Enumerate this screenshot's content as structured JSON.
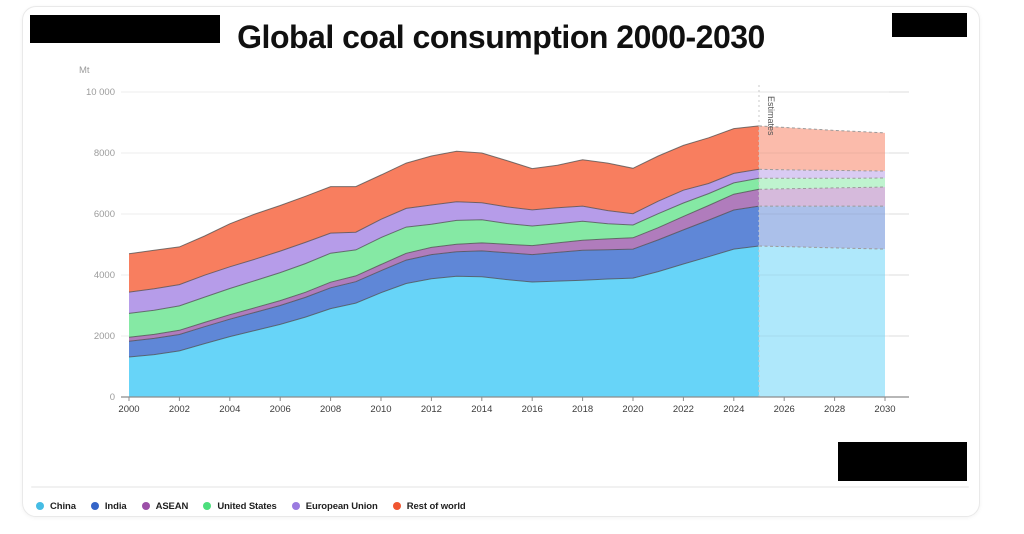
{
  "chart": {
    "title": "Global coal consumption 2000-2030",
    "unit_label": "Mt",
    "estimates_label": "Estimates",
    "chart_data": {
      "type": "area",
      "stacked": true,
      "title": "Global coal consumption 2000-2030",
      "ylabel": "Mt",
      "ylim": [
        0,
        10000
      ],
      "yticks": [
        0,
        2000,
        4000,
        6000,
        8000,
        10000
      ],
      "ytick_labels": [
        "0",
        "2000",
        "4000",
        "6000",
        "8000",
        "10 000"
      ],
      "xticks": [
        2000,
        2002,
        2004,
        2006,
        2008,
        2010,
        2012,
        2014,
        2016,
        2018,
        2020,
        2022,
        2024,
        2026,
        2028,
        2030
      ],
      "x": [
        2000,
        2001,
        2002,
        2003,
        2004,
        2005,
        2006,
        2007,
        2008,
        2009,
        2010,
        2011,
        2012,
        2013,
        2014,
        2015,
        2016,
        2017,
        2018,
        2019,
        2020,
        2021,
        2022,
        2023,
        2024,
        2025,
        2026,
        2027,
        2028,
        2029,
        2030
      ],
      "estimates_from": 2025,
      "grid": true,
      "legend_position": "bottom",
      "series": [
        {
          "name": "China",
          "color": "#67d4f8",
          "dot_color": "#45bce4",
          "values": [
            1310,
            1390,
            1510,
            1750,
            1980,
            2180,
            2380,
            2620,
            2900,
            3080,
            3420,
            3720,
            3880,
            3960,
            3940,
            3850,
            3770,
            3800,
            3830,
            3870,
            3900,
            4110,
            4360,
            4600,
            4850,
            4950,
            4930,
            4910,
            4890,
            4870,
            4850
          ]
        },
        {
          "name": "India",
          "color": "#5f87d7",
          "dot_color": "#3465c8",
          "values": [
            520,
            530,
            540,
            555,
            570,
            595,
            620,
            645,
            680,
            700,
            720,
            770,
            790,
            800,
            850,
            880,
            900,
            940,
            980,
            960,
            950,
            1040,
            1120,
            1200,
            1280,
            1310,
            1330,
            1350,
            1370,
            1390,
            1410
          ]
        },
        {
          "name": "ASEAN",
          "color": "#b07cbc",
          "dot_color": "#9c4fa8",
          "values": [
            130,
            133,
            136,
            142,
            148,
            152,
            160,
            168,
            185,
            192,
            205,
            220,
            235,
            250,
            262,
            278,
            295,
            312,
            330,
            352,
            370,
            400,
            440,
            480,
            520,
            550,
            565,
            580,
            595,
            610,
            625
          ]
        },
        {
          "name": "United States",
          "color": "#85e9a4",
          "dot_color": "#4cde7c",
          "values": [
            780,
            790,
            800,
            830,
            860,
            890,
            920,
            940,
            950,
            850,
            880,
            860,
            760,
            780,
            760,
            680,
            640,
            630,
            620,
            500,
            420,
            460,
            440,
            390,
            370,
            360,
            345,
            330,
            320,
            305,
            295
          ]
        },
        {
          "name": "European Union",
          "color": "#b69ce9",
          "dot_color": "#9b7be0",
          "values": [
            700,
            705,
            700,
            715,
            710,
            700,
            705,
            695,
            660,
            580,
            600,
            615,
            630,
            610,
            560,
            545,
            530,
            520,
            500,
            430,
            370,
            410,
            420,
            330,
            310,
            295,
            280,
            265,
            255,
            240,
            230
          ]
        },
        {
          "name": "Rest of world",
          "color": "#f87e5f",
          "dot_color": "#f05530",
          "values": [
            1260,
            1262,
            1234,
            1288,
            1412,
            1483,
            1495,
            1512,
            1525,
            1498,
            1455,
            1485,
            1605,
            1660,
            1628,
            1517,
            1355,
            1398,
            1520,
            1558,
            1490,
            1480,
            1470,
            1500,
            1470,
            1425,
            1390,
            1355,
            1310,
            1285,
            1250
          ]
        }
      ]
    }
  },
  "legend": {
    "items": [
      {
        "label": "China"
      },
      {
        "label": "India"
      },
      {
        "label": "ASEAN"
      },
      {
        "label": "United States"
      },
      {
        "label": "European Union"
      },
      {
        "label": "Rest of world"
      }
    ]
  }
}
